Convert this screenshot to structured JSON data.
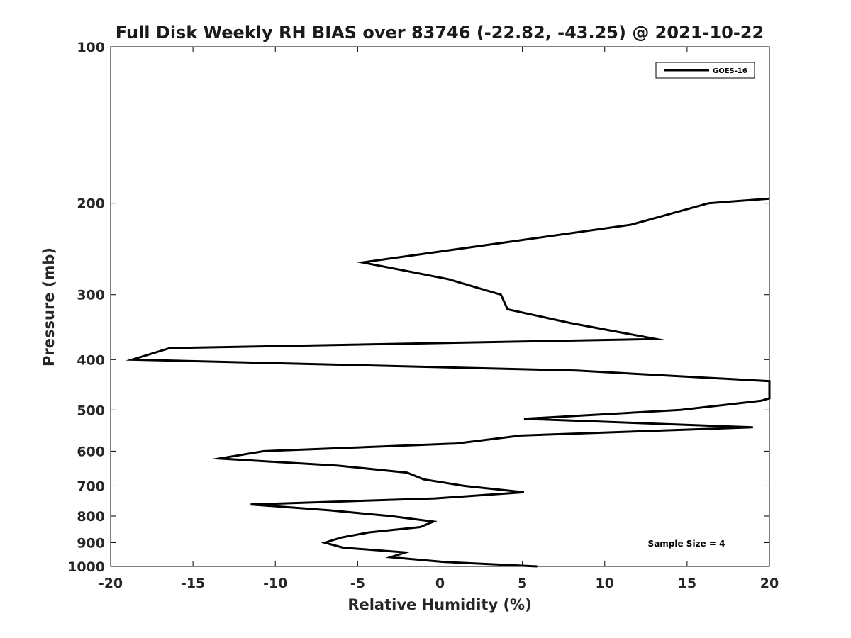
{
  "chart_data": {
    "type": "line",
    "title": "Full Disk Weekly RH BIAS over 83746 (-22.82, -43.25) @ 2021-10-22",
    "xlabel": "Relative Humidity (%)",
    "ylabel": "Pressure (mb)",
    "xlim": [
      -20,
      20
    ],
    "ylim": [
      100,
      1000
    ],
    "y_scale": "log",
    "y_reversed": true,
    "x_ticks": [
      -20,
      -15,
      -10,
      -5,
      0,
      5,
      10,
      15,
      20
    ],
    "y_ticks": [
      100,
      200,
      300,
      400,
      500,
      600,
      700,
      800,
      900,
      1000
    ],
    "grid": false,
    "legend_position": "top-right",
    "annotation": "Sample Size = 4",
    "series": [
      {
        "name": "GOES-16",
        "color": "#000000",
        "points": [
          [
            20.0,
            196
          ],
          [
            16.3,
            200
          ],
          [
            11.6,
            220
          ],
          [
            -4.7,
            260
          ],
          [
            0.5,
            280
          ],
          [
            3.7,
            300
          ],
          [
            4.1,
            320
          ],
          [
            7.9,
            340
          ],
          [
            13.1,
            365
          ],
          [
            -16.4,
            380
          ],
          [
            -18.7,
            400
          ],
          [
            8.3,
            420
          ],
          [
            20.0,
            440
          ],
          [
            20.0,
            475
          ],
          [
            19.5,
            480
          ],
          [
            14.6,
            500
          ],
          [
            5.1,
            520
          ],
          [
            19.0,
            540
          ],
          [
            4.9,
            560
          ],
          [
            1.0,
            580
          ],
          [
            -10.7,
            600
          ],
          [
            -13.4,
            620
          ],
          [
            -6.2,
            640
          ],
          [
            -2.0,
            660
          ],
          [
            -1.0,
            680
          ],
          [
            1.5,
            700
          ],
          [
            5.1,
            720
          ],
          [
            -0.3,
            740
          ],
          [
            -11.5,
            760
          ],
          [
            -6.7,
            780
          ],
          [
            -3.0,
            800
          ],
          [
            -0.4,
            820
          ],
          [
            -1.2,
            840
          ],
          [
            -4.3,
            860
          ],
          [
            -6.0,
            880
          ],
          [
            -7.0,
            900
          ],
          [
            -5.9,
            920
          ],
          [
            -2.1,
            940
          ],
          [
            -3.0,
            960
          ],
          [
            0.2,
            980
          ],
          [
            5.9,
            1000
          ]
        ]
      }
    ]
  }
}
